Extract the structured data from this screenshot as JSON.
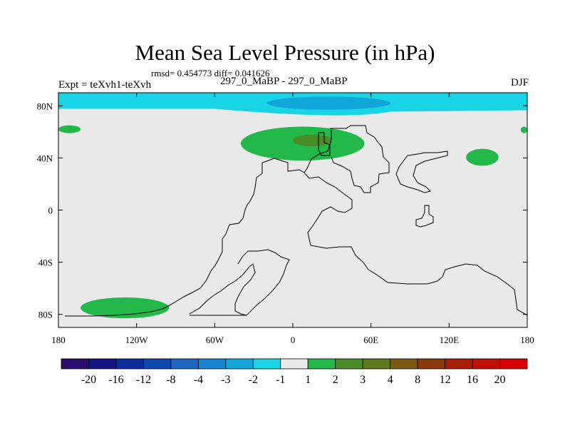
{
  "chart_data": {
    "type": "heatmap",
    "title": "Mean Sea Level Pressure (in hPa)",
    "stats_text": "rmsd= 0.454773 diff= 0.041626",
    "left_label": "Expt = teXvh1-teXvh",
    "center_label": "297_0_MaBP - 297_0_MaBP",
    "right_label": "DJF",
    "xlim": [
      -180,
      180
    ],
    "ylim": [
      -90,
      90
    ],
    "x_ticks": [
      {
        "value": -180,
        "label": "180"
      },
      {
        "value": -120,
        "label": "120W"
      },
      {
        "value": -60,
        "label": "60W"
      },
      {
        "value": 0,
        "label": "0"
      },
      {
        "value": 60,
        "label": "60E"
      },
      {
        "value": 120,
        "label": "120E"
      },
      {
        "value": 180,
        "label": "180"
      }
    ],
    "y_ticks": [
      {
        "value": 80,
        "label": "80N"
      },
      {
        "value": 40,
        "label": "40N"
      },
      {
        "value": 0,
        "label": "0"
      },
      {
        "value": -40,
        "label": "40S"
      },
      {
        "value": -80,
        "label": "80S"
      }
    ],
    "colorbar": {
      "levels": [
        "-20",
        "-16",
        "-12",
        "-8",
        "-4",
        "-3",
        "-2",
        "-1",
        "1",
        "2",
        "3",
        "4",
        "8",
        "12",
        "16",
        "20"
      ],
      "colors": [
        "#2a0d6e",
        "#141486",
        "#0f2c9e",
        "#0d47b0",
        "#1c66c2",
        "#1586cf",
        "#11a6da",
        "#18d4e4",
        "#e9e9e9",
        "#23b84a",
        "#4a8d28",
        "#5e7a1c",
        "#7a5a10",
        "#8c3a0a",
        "#a81f06",
        "#c01004",
        "#d80000"
      ]
    },
    "anomaly_regions": [
      {
        "name": "north-polar-low",
        "value_range": "-2 to -1",
        "lon": [
          -180,
          180
        ],
        "lat": [
          70,
          90
        ]
      },
      {
        "name": "north-polar-low-core",
        "value_range": "-3 to -2",
        "lon": [
          -20,
          75
        ],
        "lat": [
          77,
          87
        ]
      },
      {
        "name": "eurasia-high",
        "value_range": "1 to 2",
        "lon": [
          -40,
          55
        ],
        "lat": [
          38,
          64
        ]
      },
      {
        "name": "eurasia-high-core",
        "value_range": "2 to 3",
        "lon": [
          0,
          30
        ],
        "lat": [
          49,
          58
        ]
      },
      {
        "name": "north-pacific-high",
        "value_range": "1 to 2",
        "lon": [
          133,
          158
        ],
        "lat": [
          34,
          47
        ]
      },
      {
        "name": "dateline-high-west",
        "value_range": "1 to 2",
        "lon": [
          -180,
          -163
        ],
        "lat": [
          59,
          65
        ]
      },
      {
        "name": "dateline-high-east",
        "value_range": "1 to 2",
        "lon": [
          175,
          180
        ],
        "lat": [
          59,
          64
        ]
      },
      {
        "name": "southern-ocean-high",
        "value_range": "1 to 2",
        "lon": [
          -163,
          -95
        ],
        "lat": [
          -83,
          -67
        ]
      }
    ]
  }
}
